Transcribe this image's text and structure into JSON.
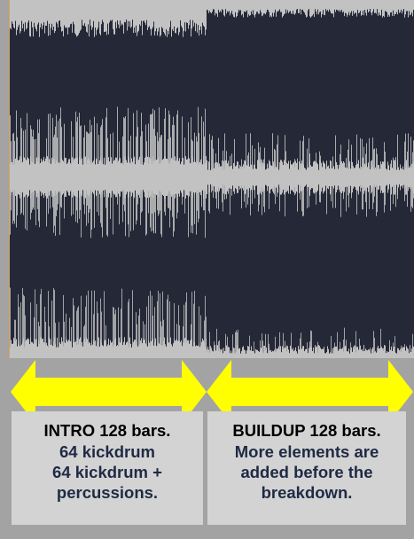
{
  "colors": {
    "background": "#a3a3a3",
    "waveform_bg": "#252837",
    "waveform_fg": "#c2c2c2",
    "arrow": "#ffff00",
    "box_bg": "#d3d3d3",
    "title_text": "#000000",
    "body_text": "#1f2a44",
    "cursor_line": "#d9a060"
  },
  "sections": [
    {
      "id": "intro",
      "title": "INTRO 128 bars.",
      "lines": [
        "64 kickdrum",
        "64 kickdrum +",
        "percussions."
      ]
    },
    {
      "id": "buildup",
      "title": "BUILDUP 128 bars.",
      "lines": [
        "More elements are",
        "added before the",
        "breakdown."
      ]
    }
  ],
  "arrows": [
    {
      "id": "intro",
      "icon": "double-arrow-icon"
    },
    {
      "id": "buildup",
      "icon": "double-arrow-icon"
    }
  ]
}
